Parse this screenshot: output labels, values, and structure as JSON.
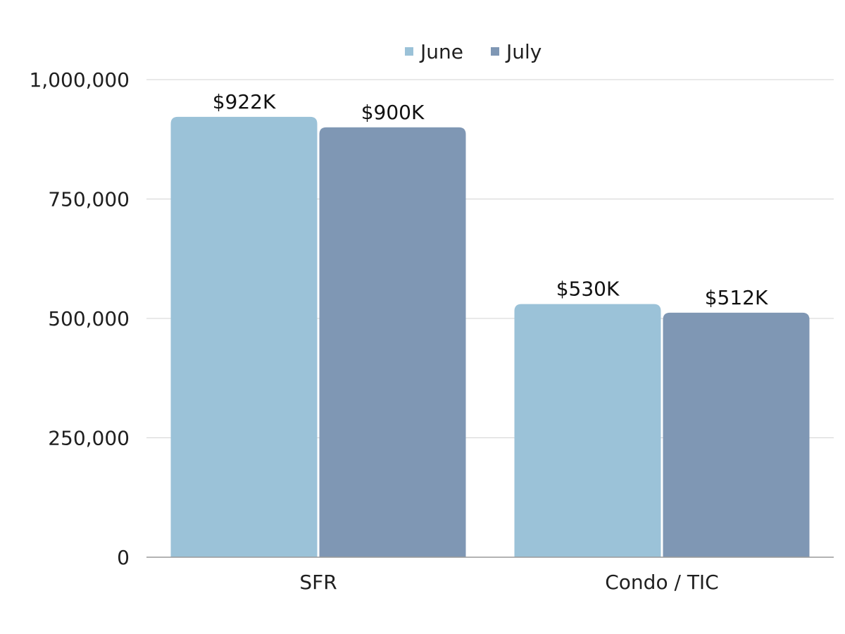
{
  "chart_data": {
    "type": "bar",
    "title": "",
    "xlabel": "",
    "ylabel": "",
    "categories": [
      "SFR",
      "Condo / TIC"
    ],
    "series": [
      {
        "name": "June",
        "color": "#9bc2d8",
        "values": [
          922000,
          530000
        ],
        "labels": [
          "$922K",
          "$530K"
        ]
      },
      {
        "name": "July",
        "color": "#7f97b4",
        "values": [
          900000,
          512000
        ],
        "labels": [
          "$900K",
          "$512K"
        ]
      }
    ],
    "ylim": [
      0,
      1000000
    ],
    "yticks": [
      0,
      250000,
      500000,
      750000,
      1000000
    ],
    "ytick_labels": [
      "0",
      "250,000",
      "500,000",
      "750,000",
      "1,000,000"
    ],
    "grid": true,
    "legend_position": "top-center"
  }
}
